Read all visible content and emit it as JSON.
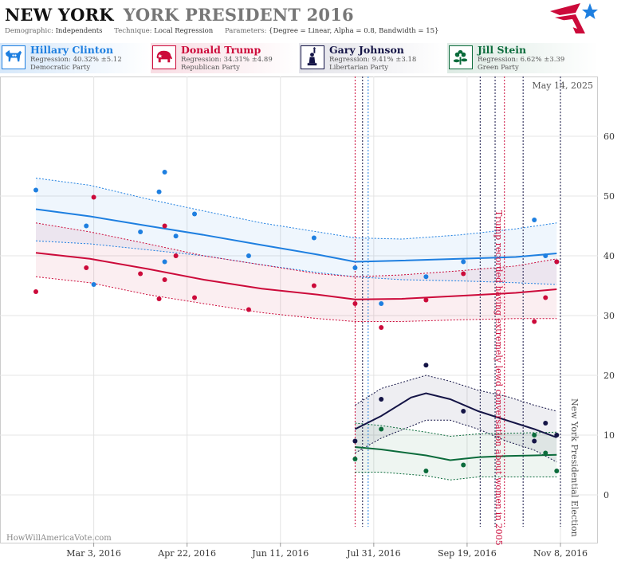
{
  "title": {
    "state": "NEW YORK",
    "race": "YORK PRESIDENT 2016"
  },
  "subtitle": {
    "demographic_label": "Demographic:",
    "demographic": "Independents",
    "technique_label": "Technique:",
    "technique": "Local Regression",
    "parameters_label": "Parameters:",
    "parameters": "{Degree = Linear, Alpha = 0.8, Bandwidth = 15}"
  },
  "candidates": [
    {
      "name": "Hillary Clinton",
      "regression": "Regression: 40.32% ±5.12",
      "party": "Democratic Party",
      "color": "#1e7fe0",
      "icon": "donkey-icon"
    },
    {
      "name": "Donald Trump",
      "regression": "Regression: 34.31% ±4.89",
      "party": "Republican Party",
      "color": "#cc0a3a",
      "icon": "elephant-icon"
    },
    {
      "name": "Gary Johnson",
      "regression": "Regression: 9.41% ±3.18",
      "party": "Libertarian Party",
      "color": "#141446",
      "icon": "liberty-icon"
    },
    {
      "name": "Jill Stein",
      "regression": "Regression: 6.62% ±3.39",
      "party": "Green Party",
      "color": "#0b6b3b",
      "icon": "flower-icon"
    }
  ],
  "chart_data": {
    "type": "scatter",
    "date_label": "May 14, 2025",
    "watermark": "HowWillAmericaVote.com",
    "x_ticks": [
      "Mar 3, 2016",
      "Apr 22, 2016",
      "Jun 11, 2016",
      "Jul 31, 2016",
      "Sep 19, 2016",
      "Nov 8, 2016"
    ],
    "x_range": [
      "2016-02-01",
      "2016-11-08"
    ],
    "y_ticks": [
      0,
      10,
      20,
      30,
      40,
      50,
      60
    ],
    "ylim": [
      -8,
      70
    ],
    "grid": true,
    "annotations": [
      {
        "text": "Trump recorded having extremely lewd conversation about women in 2005",
        "date": "2016-10-07",
        "color": "#cc0a3a"
      },
      {
        "text": "New York Presidential Election",
        "date": "2016-11-08",
        "color": "#555555"
      }
    ],
    "event_lines": [
      {
        "date": "2016-07-21",
        "color": "#cc0a3a"
      },
      {
        "date": "2016-07-25",
        "color": "#141446"
      },
      {
        "date": "2016-07-28",
        "color": "#1e7fe0"
      },
      {
        "date": "2016-09-26",
        "color": "#141446"
      },
      {
        "date": "2016-10-04",
        "color": "#141446"
      },
      {
        "date": "2016-10-09",
        "color": "#cc0a3a"
      },
      {
        "date": "2016-10-19",
        "color": "#141446"
      },
      {
        "date": "2016-11-08",
        "color": "#141446"
      }
    ],
    "series": [
      {
        "name": "Hillary Clinton",
        "color": "#1e7fe0",
        "band": "#1e7fe0",
        "points": [
          [
            "2016-02-01",
            51
          ],
          [
            "2016-02-28",
            45
          ],
          [
            "2016-03-03",
            35.2
          ],
          [
            "2016-03-28",
            44
          ],
          [
            "2016-04-07",
            50.7
          ],
          [
            "2016-04-10",
            54
          ],
          [
            "2016-04-10",
            39
          ],
          [
            "2016-04-16",
            43.3
          ],
          [
            "2016-04-26",
            47
          ],
          [
            "2016-05-25",
            40
          ],
          [
            "2016-06-29",
            43
          ],
          [
            "2016-07-21",
            38
          ],
          [
            "2016-08-04",
            32
          ],
          [
            "2016-08-28",
            36.5
          ],
          [
            "2016-09-17",
            39
          ],
          [
            "2016-10-25",
            46
          ],
          [
            "2016-10-31",
            40
          ],
          [
            "2016-11-06",
            39
          ]
        ],
        "trend": [
          [
            "2016-02-01",
            47.8
          ],
          [
            "2016-03-01",
            46.6
          ],
          [
            "2016-04-01",
            45
          ],
          [
            "2016-05-01",
            43.5
          ],
          [
            "2016-06-01",
            41.8
          ],
          [
            "2016-07-01",
            40.2
          ],
          [
            "2016-07-21",
            39
          ],
          [
            "2016-08-15",
            39.2
          ],
          [
            "2016-09-15",
            39.5
          ],
          [
            "2016-10-15",
            39.8
          ],
          [
            "2016-11-06",
            40.4
          ]
        ],
        "upper": [
          [
            "2016-02-01",
            53
          ],
          [
            "2016-03-01",
            51.8
          ],
          [
            "2016-04-01",
            49.5
          ],
          [
            "2016-05-01",
            47.5
          ],
          [
            "2016-06-01",
            45.5
          ],
          [
            "2016-07-01",
            44
          ],
          [
            "2016-07-21",
            43
          ],
          [
            "2016-08-15",
            42.8
          ],
          [
            "2016-09-15",
            43.5
          ],
          [
            "2016-10-15",
            44.5
          ],
          [
            "2016-11-06",
            45.5
          ]
        ],
        "lower": [
          [
            "2016-02-01",
            42.5
          ],
          [
            "2016-03-01",
            42
          ],
          [
            "2016-04-01",
            41
          ],
          [
            "2016-05-01",
            40
          ],
          [
            "2016-06-01",
            38.5
          ],
          [
            "2016-07-01",
            37.2
          ],
          [
            "2016-07-21",
            36.5
          ],
          [
            "2016-08-15",
            36
          ],
          [
            "2016-09-15",
            35.8
          ],
          [
            "2016-10-15",
            35.5
          ],
          [
            "2016-11-06",
            35.2
          ]
        ]
      },
      {
        "name": "Donald Trump",
        "color": "#cc0a3a",
        "band": "#cc0a3a",
        "points": [
          [
            "2016-02-01",
            34
          ],
          [
            "2016-02-28",
            38
          ],
          [
            "2016-03-03",
            49.8
          ],
          [
            "2016-03-28",
            37
          ],
          [
            "2016-04-07",
            32.8
          ],
          [
            "2016-04-10",
            45
          ],
          [
            "2016-04-10",
            36
          ],
          [
            "2016-04-16",
            40
          ],
          [
            "2016-04-26",
            33
          ],
          [
            "2016-05-25",
            31
          ],
          [
            "2016-06-29",
            35
          ],
          [
            "2016-07-21",
            32
          ],
          [
            "2016-08-04",
            28
          ],
          [
            "2016-08-28",
            32.6
          ],
          [
            "2016-09-17",
            37
          ],
          [
            "2016-10-25",
            29
          ],
          [
            "2016-10-31",
            33
          ],
          [
            "2016-11-06",
            39
          ]
        ],
        "trend": [
          [
            "2016-02-01",
            40.5
          ],
          [
            "2016-03-01",
            39.5
          ],
          [
            "2016-04-01",
            37.8
          ],
          [
            "2016-05-01",
            36
          ],
          [
            "2016-06-01",
            34.5
          ],
          [
            "2016-07-01",
            33.5
          ],
          [
            "2016-07-21",
            32.7
          ],
          [
            "2016-08-15",
            32.8
          ],
          [
            "2016-09-15",
            33.3
          ],
          [
            "2016-10-15",
            33.8
          ],
          [
            "2016-11-06",
            34.4
          ]
        ],
        "upper": [
          [
            "2016-02-01",
            45.5
          ],
          [
            "2016-03-01",
            44
          ],
          [
            "2016-04-01",
            42
          ],
          [
            "2016-05-01",
            40
          ],
          [
            "2016-06-01",
            38.5
          ],
          [
            "2016-07-01",
            37
          ],
          [
            "2016-07-21",
            36.5
          ],
          [
            "2016-08-15",
            36.8
          ],
          [
            "2016-09-15",
            37.5
          ],
          [
            "2016-10-15",
            38.3
          ],
          [
            "2016-11-06",
            39.5
          ]
        ],
        "lower": [
          [
            "2016-02-01",
            36.5
          ],
          [
            "2016-03-01",
            35.5
          ],
          [
            "2016-04-01",
            33.5
          ],
          [
            "2016-05-01",
            32
          ],
          [
            "2016-06-01",
            30.5
          ],
          [
            "2016-07-01",
            29.5
          ],
          [
            "2016-07-21",
            29
          ],
          [
            "2016-08-15",
            29
          ],
          [
            "2016-09-15",
            29.3
          ],
          [
            "2016-10-15",
            29.5
          ],
          [
            "2016-11-06",
            29.5
          ]
        ]
      },
      {
        "name": "Gary Johnson",
        "color": "#141446",
        "band": "#141446",
        "points": [
          [
            "2016-07-21",
            9
          ],
          [
            "2016-08-04",
            16
          ],
          [
            "2016-08-28",
            21.7
          ],
          [
            "2016-09-17",
            14
          ],
          [
            "2016-10-25",
            9
          ],
          [
            "2016-10-31",
            12
          ],
          [
            "2016-11-06",
            10
          ]
        ],
        "trend": [
          [
            "2016-07-21",
            11
          ],
          [
            "2016-08-04",
            13.2
          ],
          [
            "2016-08-20",
            16.3
          ],
          [
            "2016-08-28",
            17
          ],
          [
            "2016-09-10",
            16
          ],
          [
            "2016-09-25",
            14
          ],
          [
            "2016-10-10",
            12.5
          ],
          [
            "2016-10-25",
            11
          ],
          [
            "2016-11-06",
            9.6
          ]
        ],
        "upper": [
          [
            "2016-07-21",
            15
          ],
          [
            "2016-08-04",
            17.8
          ],
          [
            "2016-08-28",
            20
          ],
          [
            "2016-09-10",
            19
          ],
          [
            "2016-09-25",
            17.5
          ],
          [
            "2016-10-10",
            16.5
          ],
          [
            "2016-10-25",
            15
          ],
          [
            "2016-11-06",
            14
          ]
        ],
        "lower": [
          [
            "2016-07-21",
            7
          ],
          [
            "2016-08-04",
            9.5
          ],
          [
            "2016-08-28",
            12.5
          ],
          [
            "2016-09-10",
            12.5
          ],
          [
            "2016-09-25",
            11
          ],
          [
            "2016-10-10",
            9
          ],
          [
            "2016-10-25",
            7.5
          ],
          [
            "2016-11-06",
            5.5
          ]
        ]
      },
      {
        "name": "Jill Stein",
        "color": "#0b6b3b",
        "band": "#0b6b3b",
        "points": [
          [
            "2016-07-21",
            6
          ],
          [
            "2016-08-04",
            11
          ],
          [
            "2016-08-28",
            4
          ],
          [
            "2016-09-17",
            5
          ],
          [
            "2016-10-25",
            10
          ],
          [
            "2016-10-31",
            7
          ],
          [
            "2016-11-06",
            4
          ]
        ],
        "trend": [
          [
            "2016-07-21",
            8
          ],
          [
            "2016-08-04",
            7.6
          ],
          [
            "2016-08-28",
            6.6
          ],
          [
            "2016-09-10",
            5.8
          ],
          [
            "2016-09-25",
            6.3
          ],
          [
            "2016-10-10",
            6.5
          ],
          [
            "2016-10-25",
            6.6
          ],
          [
            "2016-11-06",
            6.7
          ]
        ],
        "upper": [
          [
            "2016-07-21",
            12
          ],
          [
            "2016-08-04",
            11.6
          ],
          [
            "2016-08-28",
            10.5
          ],
          [
            "2016-09-10",
            9.8
          ],
          [
            "2016-09-25",
            10.2
          ],
          [
            "2016-10-10",
            10.3
          ],
          [
            "2016-10-25",
            10.4
          ],
          [
            "2016-11-06",
            10.5
          ]
        ],
        "lower": [
          [
            "2016-07-21",
            3.8
          ],
          [
            "2016-08-04",
            3.8
          ],
          [
            "2016-08-28",
            3.2
          ],
          [
            "2016-09-10",
            2.5
          ],
          [
            "2016-09-25",
            3
          ],
          [
            "2016-10-10",
            3
          ],
          [
            "2016-10-25",
            3
          ],
          [
            "2016-11-06",
            3
          ]
        ]
      }
    ]
  }
}
